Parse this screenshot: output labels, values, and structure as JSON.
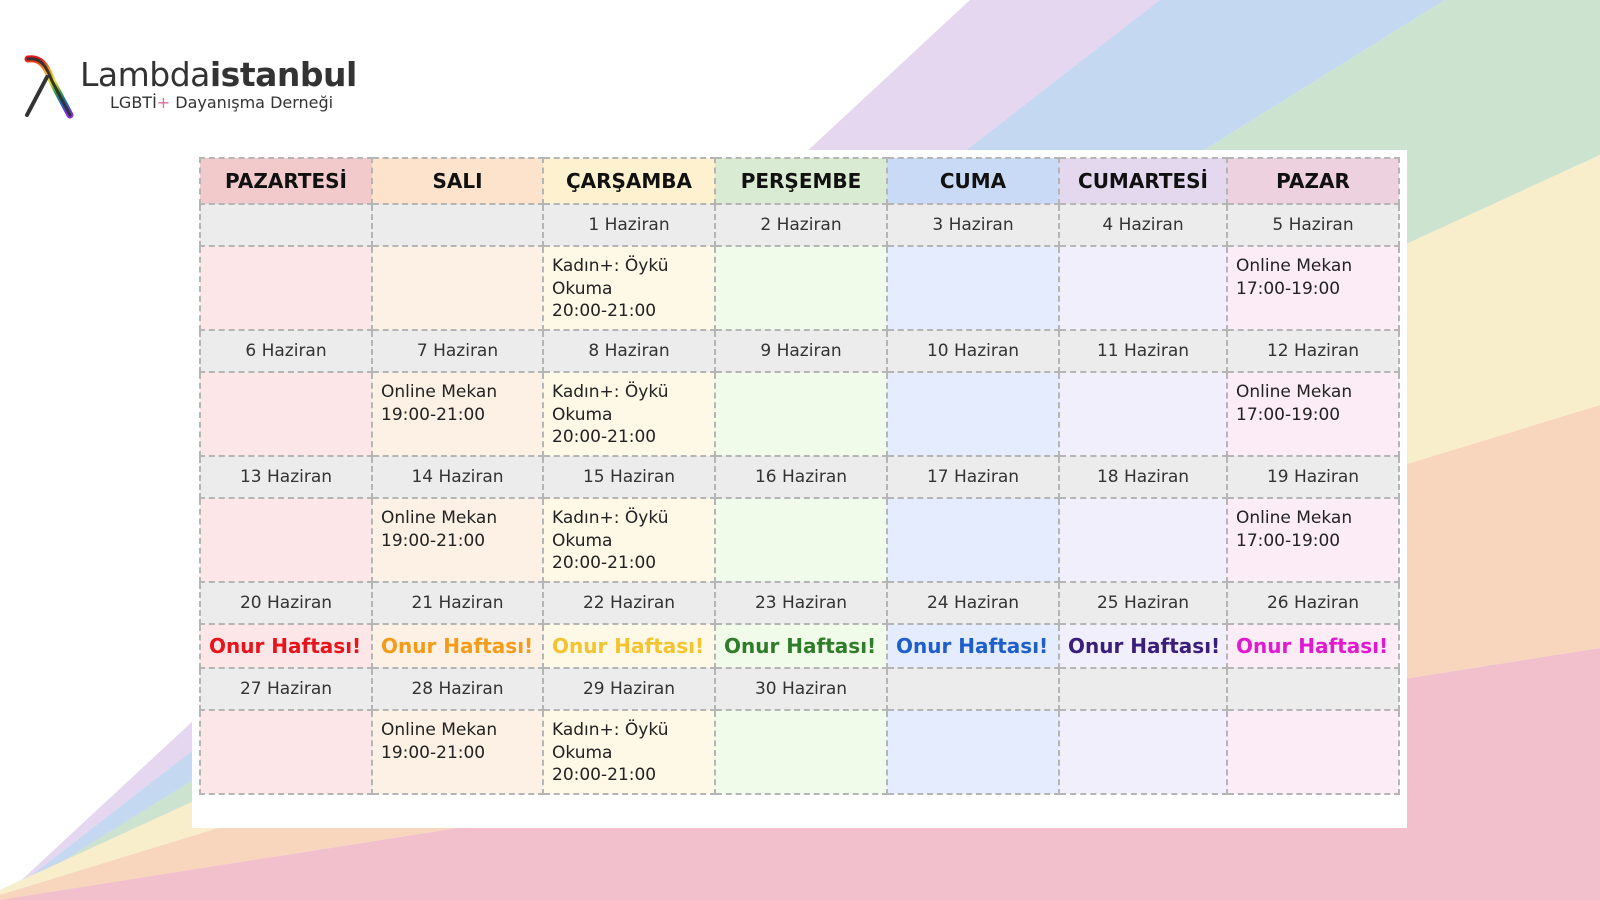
{
  "colors": {
    "band_purple": "#e6d7f0",
    "band_blue": "#c5d8f2",
    "band_green": "#cce3cf",
    "band_yellow": "#f9eecb",
    "band_orange": "#f8d6bd",
    "band_pink": "#f2bfcc",
    "logo_text": "#333333"
  },
  "logo": {
    "icon": "lambda-icon",
    "name_light": "Lambda",
    "name_bold": "istanbul",
    "subtitle_before": "LGBTİ",
    "subtitle_plus": "+",
    "subtitle_after": " Dayanışma Derneği"
  },
  "calendar": {
    "days": [
      "PAZARTESİ",
      "SALI",
      "ÇARŞAMBA",
      "PERŞEMBE",
      "CUMA",
      "CUMARTESİ",
      "PAZAR"
    ],
    "weeks": [
      {
        "dates": [
          "",
          "",
          "1 Haziran",
          "2 Haziran",
          "3 Haziran",
          "4 Haziran",
          "5 Haziran"
        ],
        "events": [
          [],
          [],
          [
            "Kadın+: Öykü",
            "Okuma",
            "20:00-21:00"
          ],
          [],
          [],
          [],
          [
            "Online Mekan",
            "17:00-19:00"
          ]
        ]
      },
      {
        "dates": [
          "6 Haziran",
          "7 Haziran",
          "8 Haziran",
          "9 Haziran",
          "10 Haziran",
          "11 Haziran",
          "12 Haziran"
        ],
        "events": [
          [],
          [
            "Online Mekan",
            "19:00-21:00"
          ],
          [
            "Kadın+: Öykü",
            "Okuma",
            "20:00-21:00"
          ],
          [],
          [],
          [],
          [
            "Online Mekan",
            "17:00-19:00"
          ]
        ]
      },
      {
        "dates": [
          "13 Haziran",
          "14 Haziran",
          "15 Haziran",
          "16 Haziran",
          "17 Haziran",
          "18 Haziran",
          "19 Haziran"
        ],
        "events": [
          [],
          [
            "Online Mekan",
            "19:00-21:00"
          ],
          [
            "Kadın+: Öykü",
            "Okuma",
            "20:00-21:00"
          ],
          [],
          [],
          [],
          [
            "Online Mekan",
            "17:00-19:00"
          ]
        ]
      },
      {
        "dates": [
          "20 Haziran",
          "21 Haziran",
          "22 Haziran",
          "23 Haziran",
          "24 Haziran",
          "25 Haziran",
          "26 Haziran"
        ],
        "pride": {
          "label": "Onur Haftası!",
          "colors": [
            "#e8141c",
            "#f39c1a",
            "#f4c430",
            "#2f7d2a",
            "#1f5fcb",
            "#3a1f7a",
            "#e11ad2"
          ]
        }
      },
      {
        "dates": [
          "27 Haziran",
          "28 Haziran",
          "29 Haziran",
          "30 Haziran",
          "",
          "",
          ""
        ],
        "events": [
          [],
          [
            "Online Mekan",
            "19:00-21:00"
          ],
          [
            "Kadın+: Öykü",
            "Okuma",
            "20:00-21:00"
          ],
          [],
          [],
          [],
          []
        ]
      }
    ]
  }
}
